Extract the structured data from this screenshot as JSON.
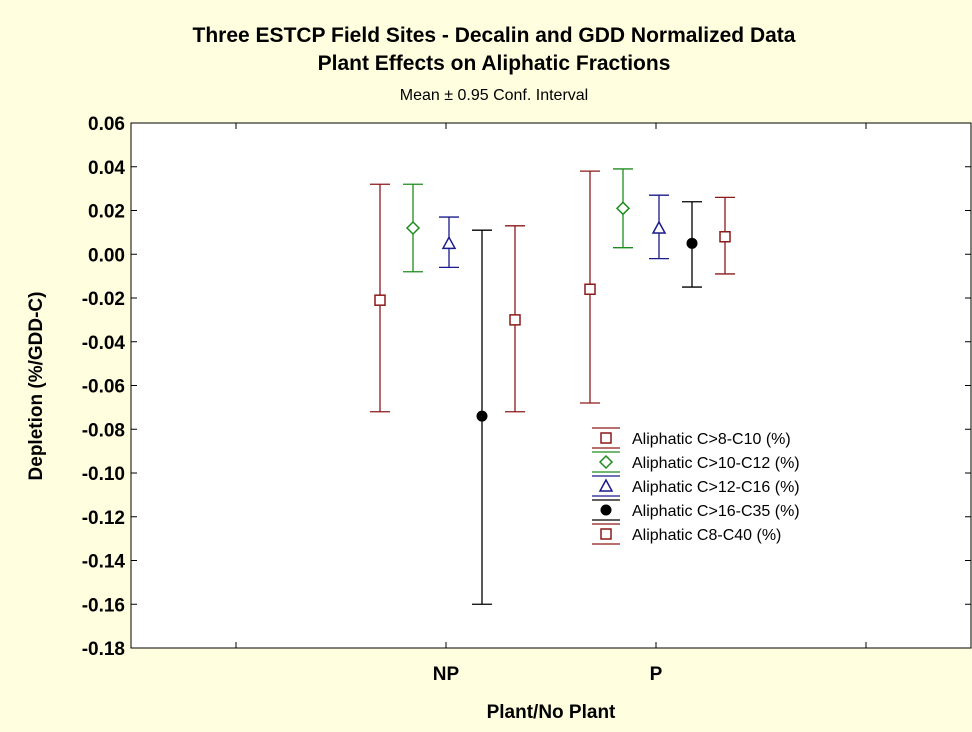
{
  "chart_data": {
    "type": "error-bar",
    "title": "Three ESTCP Field Sites - Decalin and GDD Normalized Data",
    "subtitle": "Plant Effects on Aliphatic Fractions",
    "note": "Mean ± 0.95 Conf. Interval",
    "xlabel": "Plant/No Plant",
    "ylabel": "Depletion (%/GDD-C)",
    "categories": [
      "NP",
      "P"
    ],
    "ylim": [
      -0.18,
      0.06
    ],
    "yticks": [
      "0.06",
      "0.04",
      "0.02",
      "0.00",
      "-0.02",
      "-0.04",
      "-0.06",
      "-0.08",
      "-0.10",
      "-0.12",
      "-0.14",
      "-0.16",
      "-0.18"
    ],
    "series": [
      {
        "name": "Aliphatic C>8-C10 (%)",
        "color": "#8b1a1a",
        "marker": "square-open",
        "mean": [
          -0.021,
          -0.016
        ],
        "lower": [
          -0.072,
          -0.068
        ],
        "upper": [
          0.032,
          0.038
        ]
      },
      {
        "name": "Aliphatic C>10-C12 (%)",
        "color": "#1e8c1e",
        "marker": "diamond-open",
        "mean": [
          0.012,
          0.021
        ],
        "lower": [
          -0.008,
          0.003
        ],
        "upper": [
          0.032,
          0.039
        ]
      },
      {
        "name": "Aliphatic C>12-C16 (%)",
        "color": "#1a1a8c",
        "marker": "triangle-open",
        "mean": [
          0.005,
          0.012
        ],
        "lower": [
          -0.006,
          -0.002
        ],
        "upper": [
          0.017,
          0.027
        ]
      },
      {
        "name": "Aliphatic C>16-C35  (%)",
        "color": "#000000",
        "marker": "circle-filled",
        "mean": [
          -0.074,
          0.005
        ],
        "lower": [
          -0.16,
          -0.015
        ],
        "upper": [
          0.011,
          0.024
        ]
      },
      {
        "name": "Aliphatic C8-C40 (%)",
        "color": "#8b1a1a",
        "marker": "square-open",
        "mean": [
          -0.03,
          0.008
        ],
        "lower": [
          -0.072,
          -0.009
        ],
        "upper": [
          0.013,
          0.026
        ]
      }
    ],
    "legend_position": "lower-right",
    "grid": false
  }
}
